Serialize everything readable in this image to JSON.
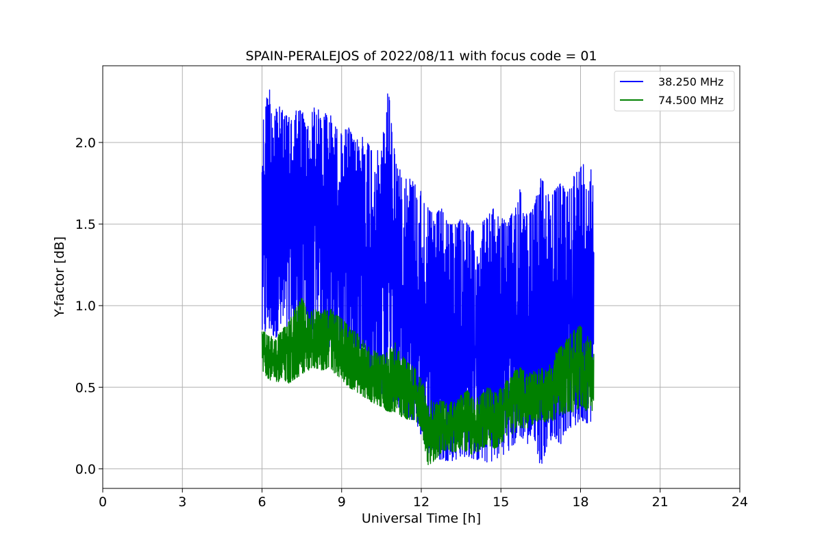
{
  "chart_data": {
    "type": "line",
    "title": "SPAIN-PERALEJOS of 2022/08/11 with focus code = 01",
    "xlabel": "Universal Time [h]",
    "ylabel": "Y-factor [dB]",
    "xlim": [
      0,
      24
    ],
    "ylim": [
      -0.12,
      2.47
    ],
    "xticks": [
      0,
      3,
      6,
      9,
      12,
      15,
      18,
      21,
      24
    ],
    "xtick_labels": [
      "0",
      "3",
      "6",
      "9",
      "12",
      "15",
      "18",
      "21",
      "24"
    ],
    "yticks": [
      0.0,
      0.5,
      1.0,
      1.5,
      2.0
    ],
    "ytick_labels": [
      "0.0",
      "0.5",
      "1.0",
      "1.5",
      "2.0"
    ],
    "grid": true,
    "legend_position": "top-right",
    "series": [
      {
        "name": "38.250 MHz",
        "color": "#0000ff",
        "x": [
          6.0,
          6.25,
          6.5,
          6.75,
          7.0,
          7.25,
          7.5,
          7.75,
          8.0,
          8.25,
          8.5,
          8.75,
          9.0,
          9.25,
          9.5,
          9.75,
          10.0,
          10.25,
          10.5,
          10.75,
          11.0,
          11.25,
          11.5,
          11.75,
          12.0,
          12.25,
          12.5,
          12.75,
          13.0,
          13.25,
          13.5,
          13.75,
          14.0,
          14.25,
          14.5,
          14.75,
          15.0,
          15.25,
          15.5,
          15.75,
          16.0,
          16.25,
          16.5,
          16.75,
          17.0,
          17.25,
          17.5,
          17.75,
          18.0,
          18.25,
          18.5
        ],
        "upper": [
          2.1,
          2.35,
          2.25,
          2.2,
          2.15,
          2.2,
          2.2,
          2.1,
          2.25,
          2.15,
          2.2,
          2.1,
          2.05,
          2.1,
          2.0,
          2.05,
          2.0,
          1.95,
          1.95,
          2.35,
          1.95,
          1.8,
          1.8,
          1.75,
          1.7,
          1.6,
          1.55,
          1.6,
          1.5,
          1.5,
          1.55,
          1.5,
          1.45,
          1.5,
          1.55,
          1.6,
          1.55,
          1.5,
          1.6,
          1.75,
          1.55,
          1.6,
          1.8,
          1.7,
          1.7,
          1.75,
          1.7,
          1.8,
          1.85,
          1.9,
          1.8
        ],
        "lower": [
          0.8,
          0.85,
          0.8,
          0.85,
          0.8,
          0.85,
          0.8,
          0.75,
          0.75,
          0.75,
          0.75,
          0.7,
          0.7,
          0.65,
          0.6,
          0.6,
          0.55,
          0.5,
          0.45,
          0.45,
          0.4,
          0.35,
          0.3,
          0.3,
          0.2,
          0.1,
          0.08,
          0.05,
          0.05,
          0.05,
          0.08,
          0.07,
          0.06,
          0.05,
          0.04,
          0.05,
          0.08,
          0.1,
          0.15,
          0.2,
          0.15,
          0.2,
          0.0,
          0.15,
          0.2,
          0.15,
          0.25,
          0.25,
          0.3,
          0.28,
          0.3
        ]
      },
      {
        "name": "74.500 MHz",
        "color": "#008000",
        "x": [
          6.0,
          6.25,
          6.5,
          6.75,
          7.0,
          7.25,
          7.5,
          7.75,
          8.0,
          8.25,
          8.5,
          8.75,
          9.0,
          9.25,
          9.5,
          9.75,
          10.0,
          10.25,
          10.5,
          10.75,
          11.0,
          11.25,
          11.5,
          11.75,
          12.0,
          12.25,
          12.5,
          12.75,
          13.0,
          13.25,
          13.5,
          13.75,
          14.0,
          14.25,
          14.5,
          14.75,
          15.0,
          15.25,
          15.5,
          15.75,
          16.0,
          16.25,
          16.5,
          16.75,
          17.0,
          17.25,
          17.5,
          17.75,
          18.0,
          18.25,
          18.5
        ],
        "upper": [
          0.85,
          0.82,
          0.8,
          0.85,
          0.9,
          0.98,
          1.05,
          0.95,
          0.98,
          0.95,
          1.0,
          0.95,
          0.92,
          0.88,
          0.85,
          0.8,
          0.75,
          0.72,
          0.7,
          0.72,
          0.78,
          0.7,
          0.65,
          0.62,
          0.55,
          0.45,
          0.4,
          0.42,
          0.4,
          0.42,
          0.45,
          0.48,
          0.42,
          0.45,
          0.5,
          0.48,
          0.5,
          0.55,
          0.6,
          0.62,
          0.58,
          0.6,
          0.62,
          0.6,
          0.7,
          0.75,
          0.8,
          0.85,
          0.88,
          0.82,
          0.75
        ],
        "lower": [
          0.6,
          0.55,
          0.52,
          0.55,
          0.52,
          0.55,
          0.58,
          0.6,
          0.62,
          0.6,
          0.62,
          0.58,
          0.55,
          0.5,
          0.48,
          0.45,
          0.42,
          0.4,
          0.38,
          0.35,
          0.35,
          0.32,
          0.3,
          0.3,
          0.25,
          0.02,
          0.05,
          0.1,
          0.12,
          0.1,
          0.12,
          0.1,
          0.08,
          0.12,
          0.15,
          0.12,
          0.15,
          0.2,
          0.22,
          0.25,
          0.25,
          0.28,
          0.3,
          0.28,
          0.3,
          0.32,
          0.35,
          0.35,
          0.38,
          0.35,
          0.35
        ]
      }
    ]
  }
}
